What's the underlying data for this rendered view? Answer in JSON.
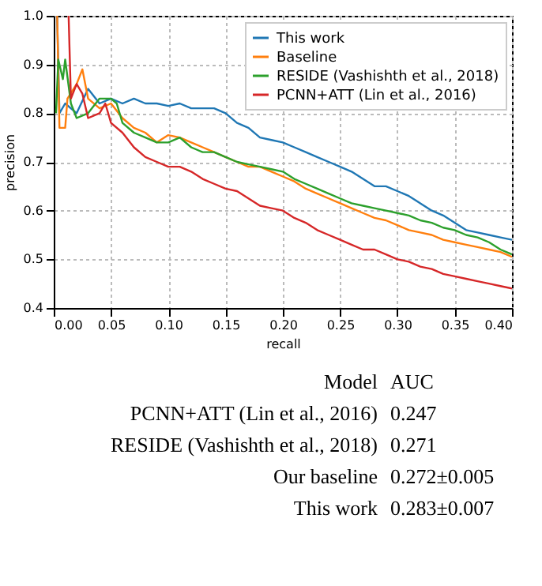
{
  "chart_data": {
    "type": "line",
    "xlabel": "recall",
    "ylabel": "precision",
    "xlim": [
      0,
      0.4
    ],
    "ylim": [
      0.4,
      1.0
    ],
    "xticks": [
      {
        "value": 0,
        "label": "0.00"
      },
      {
        "value": 0.05,
        "label": "0.05"
      },
      {
        "value": 0.1,
        "label": "0.10"
      },
      {
        "value": 0.15,
        "label": "0.15"
      },
      {
        "value": 0.2,
        "label": "0.20"
      },
      {
        "value": 0.25,
        "label": "0.25"
      },
      {
        "value": 0.3,
        "label": "0.30"
      },
      {
        "value": 0.35,
        "label": "0.35"
      },
      {
        "value": 0.4,
        "label": "0.40"
      }
    ],
    "yticks": [
      0.4,
      0.5,
      0.6,
      0.7,
      0.8,
      0.9,
      {
        "value": 1,
        "label": "1.0"
      }
    ],
    "grid": true,
    "legend": "top right",
    "line_style": "solid",
    "series": [
      {
        "name": "This work",
        "color": "#1f77b4",
        "x": [
          0.003,
          0.005,
          0.01,
          0.02,
          0.03,
          0.04,
          0.05,
          0.06,
          0.07,
          0.08,
          0.09,
          0.1,
          0.11,
          0.12,
          0.13,
          0.14,
          0.15,
          0.16,
          0.17,
          0.18,
          0.19,
          0.2,
          0.21,
          0.22,
          0.23,
          0.24,
          0.25,
          0.26,
          0.27,
          0.28,
          0.29,
          0.3,
          0.31,
          0.32,
          0.33,
          0.34,
          0.35,
          0.36,
          0.37,
          0.38,
          0.39,
          0.4
        ],
        "values": [
          1.0,
          0.8,
          0.82,
          0.8,
          0.85,
          0.82,
          0.83,
          0.82,
          0.83,
          0.82,
          0.82,
          0.815,
          0.82,
          0.81,
          0.81,
          0.81,
          0.8,
          0.78,
          0.77,
          0.75,
          0.745,
          0.74,
          0.73,
          0.72,
          0.71,
          0.7,
          0.69,
          0.68,
          0.665,
          0.65,
          0.65,
          0.64,
          0.63,
          0.615,
          0.6,
          0.59,
          0.575,
          0.56,
          0.555,
          0.55,
          0.545,
          0.54
        ]
      },
      {
        "name": "Baseline",
        "color": "#ff7f0e",
        "x": [
          0.003,
          0.005,
          0.01,
          0.012,
          0.02,
          0.025,
          0.03,
          0.04,
          0.05,
          0.06,
          0.07,
          0.08,
          0.09,
          0.1,
          0.11,
          0.12,
          0.13,
          0.14,
          0.15,
          0.16,
          0.17,
          0.18,
          0.19,
          0.2,
          0.21,
          0.22,
          0.23,
          0.24,
          0.25,
          0.26,
          0.27,
          0.28,
          0.29,
          0.3,
          0.31,
          0.32,
          0.33,
          0.34,
          0.35,
          0.36,
          0.37,
          0.38,
          0.39,
          0.4
        ],
        "values": [
          1.0,
          0.77,
          0.77,
          0.83,
          0.86,
          0.89,
          0.83,
          0.81,
          0.82,
          0.79,
          0.77,
          0.76,
          0.74,
          0.755,
          0.75,
          0.74,
          0.73,
          0.72,
          0.71,
          0.7,
          0.69,
          0.69,
          0.68,
          0.67,
          0.66,
          0.645,
          0.635,
          0.625,
          0.615,
          0.605,
          0.595,
          0.585,
          0.58,
          0.57,
          0.56,
          0.555,
          0.55,
          0.54,
          0.535,
          0.53,
          0.525,
          0.52,
          0.515,
          0.505
        ]
      },
      {
        "name": "RESIDE (Vashishth et al., 2018)",
        "color": "#2ca02c",
        "x": [
          0.002,
          0.004,
          0.008,
          0.01,
          0.015,
          0.02,
          0.03,
          0.04,
          0.05,
          0.055,
          0.06,
          0.07,
          0.08,
          0.09,
          0.1,
          0.11,
          0.12,
          0.13,
          0.14,
          0.15,
          0.16,
          0.17,
          0.18,
          0.19,
          0.2,
          0.21,
          0.22,
          0.23,
          0.24,
          0.25,
          0.26,
          0.27,
          0.28,
          0.29,
          0.3,
          0.31,
          0.32,
          0.33,
          0.34,
          0.35,
          0.36,
          0.37,
          0.38,
          0.39,
          0.4
        ],
        "values": [
          0.8,
          0.91,
          0.87,
          0.91,
          0.82,
          0.79,
          0.8,
          0.83,
          0.83,
          0.82,
          0.78,
          0.76,
          0.75,
          0.74,
          0.74,
          0.75,
          0.73,
          0.72,
          0.72,
          0.71,
          0.7,
          0.695,
          0.69,
          0.685,
          0.68,
          0.665,
          0.655,
          0.645,
          0.635,
          0.625,
          0.615,
          0.61,
          0.605,
          0.6,
          0.595,
          0.59,
          0.58,
          0.575,
          0.565,
          0.56,
          0.55,
          0.545,
          0.535,
          0.52,
          0.51
        ]
      },
      {
        "name": "PCNN+ATT (Lin et al., 2016)",
        "color": "#d62728",
        "x": [
          0.013,
          0.015,
          0.02,
          0.025,
          0.03,
          0.04,
          0.045,
          0.05,
          0.06,
          0.07,
          0.08,
          0.09,
          0.1,
          0.11,
          0.12,
          0.13,
          0.14,
          0.15,
          0.16,
          0.17,
          0.18,
          0.19,
          0.2,
          0.21,
          0.22,
          0.23,
          0.24,
          0.25,
          0.26,
          0.27,
          0.28,
          0.29,
          0.3,
          0.31,
          0.32,
          0.33,
          0.34,
          0.35,
          0.36,
          0.37,
          0.38,
          0.39,
          0.4
        ],
        "values": [
          1.0,
          0.83,
          0.86,
          0.84,
          0.79,
          0.8,
          0.82,
          0.78,
          0.76,
          0.73,
          0.71,
          0.7,
          0.69,
          0.69,
          0.68,
          0.665,
          0.655,
          0.645,
          0.64,
          0.625,
          0.61,
          0.605,
          0.6,
          0.585,
          0.575,
          0.56,
          0.55,
          0.54,
          0.53,
          0.52,
          0.52,
          0.51,
          0.5,
          0.495,
          0.485,
          0.48,
          0.47,
          0.465,
          0.46,
          0.455,
          0.45,
          0.445,
          0.44
        ]
      }
    ],
    "annotations": [
      "Model",
      "AUC",
      "PCNN+ATT (Lin et al., 2016)",
      "0.247",
      "RESIDE (Vashishth et al., 2018)",
      "0.271",
      "Our baseline",
      "0.272±0.005",
      "This work",
      "0.283±0.007"
    ]
  }
}
